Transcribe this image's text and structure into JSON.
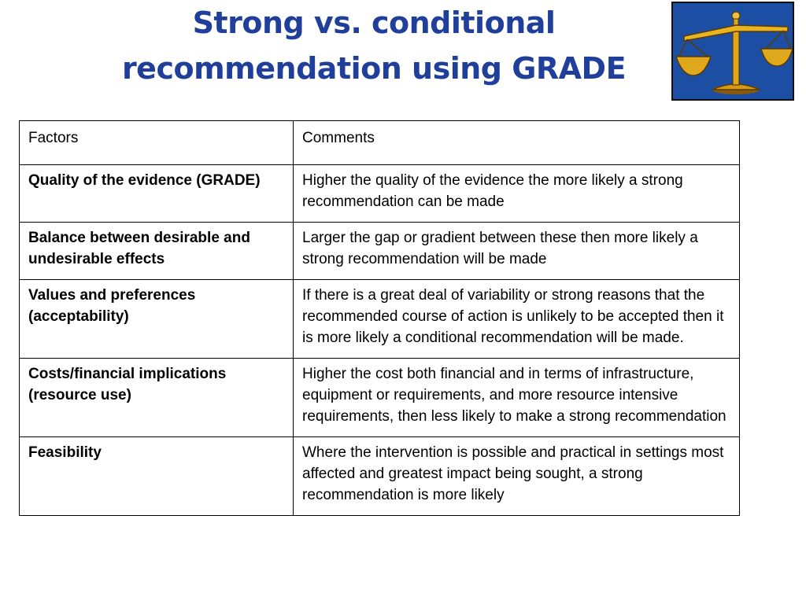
{
  "slide": {
    "title_line1": "Strong vs. conditional",
    "title_line2": "recommendation using GRADE",
    "logo_icon": "balance-scale-icon",
    "colors": {
      "title": "#1f3f9b",
      "logo_background": "#1c4fa3",
      "logo_scale": "#e0a81c"
    }
  },
  "table": {
    "header": {
      "factor": "Factors",
      "comment": "Comments"
    },
    "rows": [
      {
        "factor": "Quality of the evidence (GRADE)",
        "comment": "Higher the quality of the evidence the more likely a strong recommendation can be made"
      },
      {
        "factor": "Balance between desirable and undesirable effects",
        "comment": "Larger the gap or gradient between these then more likely a strong recommendation will be made"
      },
      {
        "factor": "Values and preferences (acceptability)",
        "comment": "If there is a great deal of variability or strong reasons that the recommended course of action is unlikely to be accepted then it is more likely a conditional recommendation will be made."
      },
      {
        "factor": "Costs/financial implications (resource use)",
        "comment": "Higher the cost both financial and in terms of infrastructure, equipment or requirements,  and more resource intensive requirements, then less likely to make a strong recommendation"
      },
      {
        "factor": "Feasibility",
        "comment": "Where the intervention is possible and practical in settings most affected and greatest impact being sought, a strong recommendation is more likely"
      }
    ]
  }
}
